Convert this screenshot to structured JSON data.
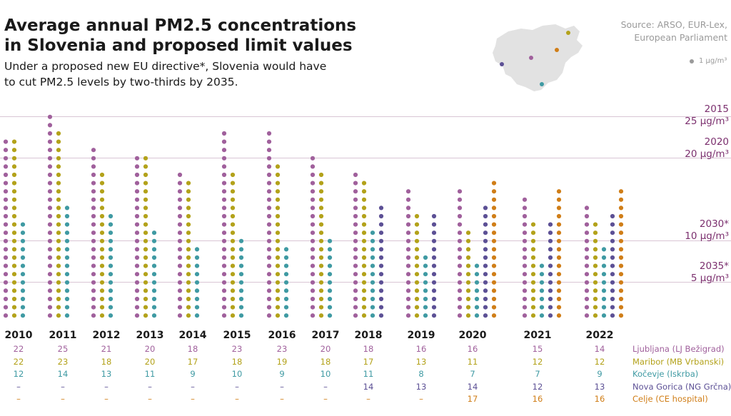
{
  "title": "Average annual PM2.5 concentrations in Slovenia and proposed limit values",
  "subtitle": "Under a proposed new EU directive*, Slovenia would have to cut PM2.5 levels by two-thirds by 2035.",
  "source": "Source: ARSO, EUR-Lex, European Parliament",
  "legend_unit": "1 µg/m³",
  "colors": {
    "ljubljana": "#a0609c",
    "maribor": "#b3a21a",
    "kocevje": "#3f9aa3",
    "nova_gorica": "#5c5095",
    "celje": "#d07e18",
    "limit_line": "#d9c5d5",
    "limit_text": "#7b2f6e",
    "map": "#e2e2e2"
  },
  "limits": [
    {
      "year": "2015",
      "value_text": "25 µg/m³"
    },
    {
      "year": "2020",
      "value_text": "20 µg/m³"
    },
    {
      "year": "2030*",
      "value_text": "10 µg/m³"
    },
    {
      "year": "2035*",
      "value_text": "5 µg/m³"
    }
  ],
  "stations": [
    {
      "label": "Ljubljana (LJ Bežigrad)",
      "color": "#a0609c"
    },
    {
      "label": "Maribor (MB Vrbanski)",
      "color": "#b3a21a"
    },
    {
      "label": "Kočevje (Iskrba)",
      "color": "#3f9aa3"
    },
    {
      "label": "Nova Gorica (NG Grčna)",
      "color": "#5c5095"
    },
    {
      "label": "Celje (CE hospital)",
      "color": "#d07e18"
    }
  ],
  "table_rows": [
    [
      "22",
      "25",
      "21",
      "20",
      "18",
      "23",
      "23",
      "20",
      "18",
      "16",
      "16",
      "15",
      "14"
    ],
    [
      "22",
      "23",
      "18",
      "20",
      "17",
      "18",
      "19",
      "18",
      "17",
      "13",
      "11",
      "12",
      "12"
    ],
    [
      "12",
      "14",
      "13",
      "11",
      "9",
      "10",
      "9",
      "10",
      "11",
      "8",
      "7",
      "7",
      "9"
    ],
    [
      "–",
      "–",
      "–",
      "–",
      "–",
      "–",
      "–",
      "–",
      "14",
      "13",
      "14",
      "12",
      "13"
    ],
    [
      "–",
      "–",
      "–",
      "–",
      "–",
      "–",
      "–",
      "–",
      "–",
      "–",
      "17",
      "16",
      "16"
    ]
  ],
  "chart_data": {
    "type": "dot-column",
    "title": "Average annual PM2.5 concentrations in Slovenia and proposed limit values",
    "ylabel": "",
    "ylim": [
      0,
      25
    ],
    "categories": [
      "2010",
      "2011",
      "2012",
      "2013",
      "2014",
      "2015",
      "2016",
      "2017",
      "2018",
      "2019",
      "2020",
      "2021",
      "2022"
    ],
    "series": [
      {
        "name": "Ljubljana (LJ Bežigrad)",
        "values": [
          22,
          25,
          21,
          20,
          18,
          23,
          23,
          20,
          18,
          16,
          16,
          15,
          14
        ]
      },
      {
        "name": "Maribor (MB Vrbanski)",
        "values": [
          22,
          23,
          18,
          20,
          17,
          18,
          19,
          18,
          17,
          13,
          11,
          12,
          12
        ]
      },
      {
        "name": "Kočevje (Iskrba)",
        "values": [
          12,
          14,
          13,
          11,
          9,
          10,
          9,
          10,
          11,
          8,
          7,
          7,
          9
        ]
      },
      {
        "name": "Nova Gorica (NG Grčna)",
        "values": [
          null,
          null,
          null,
          null,
          null,
          null,
          null,
          null,
          14,
          13,
          14,
          12,
          13
        ]
      },
      {
        "name": "Celje (CE hospital)",
        "values": [
          null,
          null,
          null,
          null,
          null,
          null,
          null,
          null,
          null,
          null,
          17,
          16,
          16
        ]
      }
    ],
    "reference_lines": [
      25,
      20,
      10,
      5
    ]
  }
}
